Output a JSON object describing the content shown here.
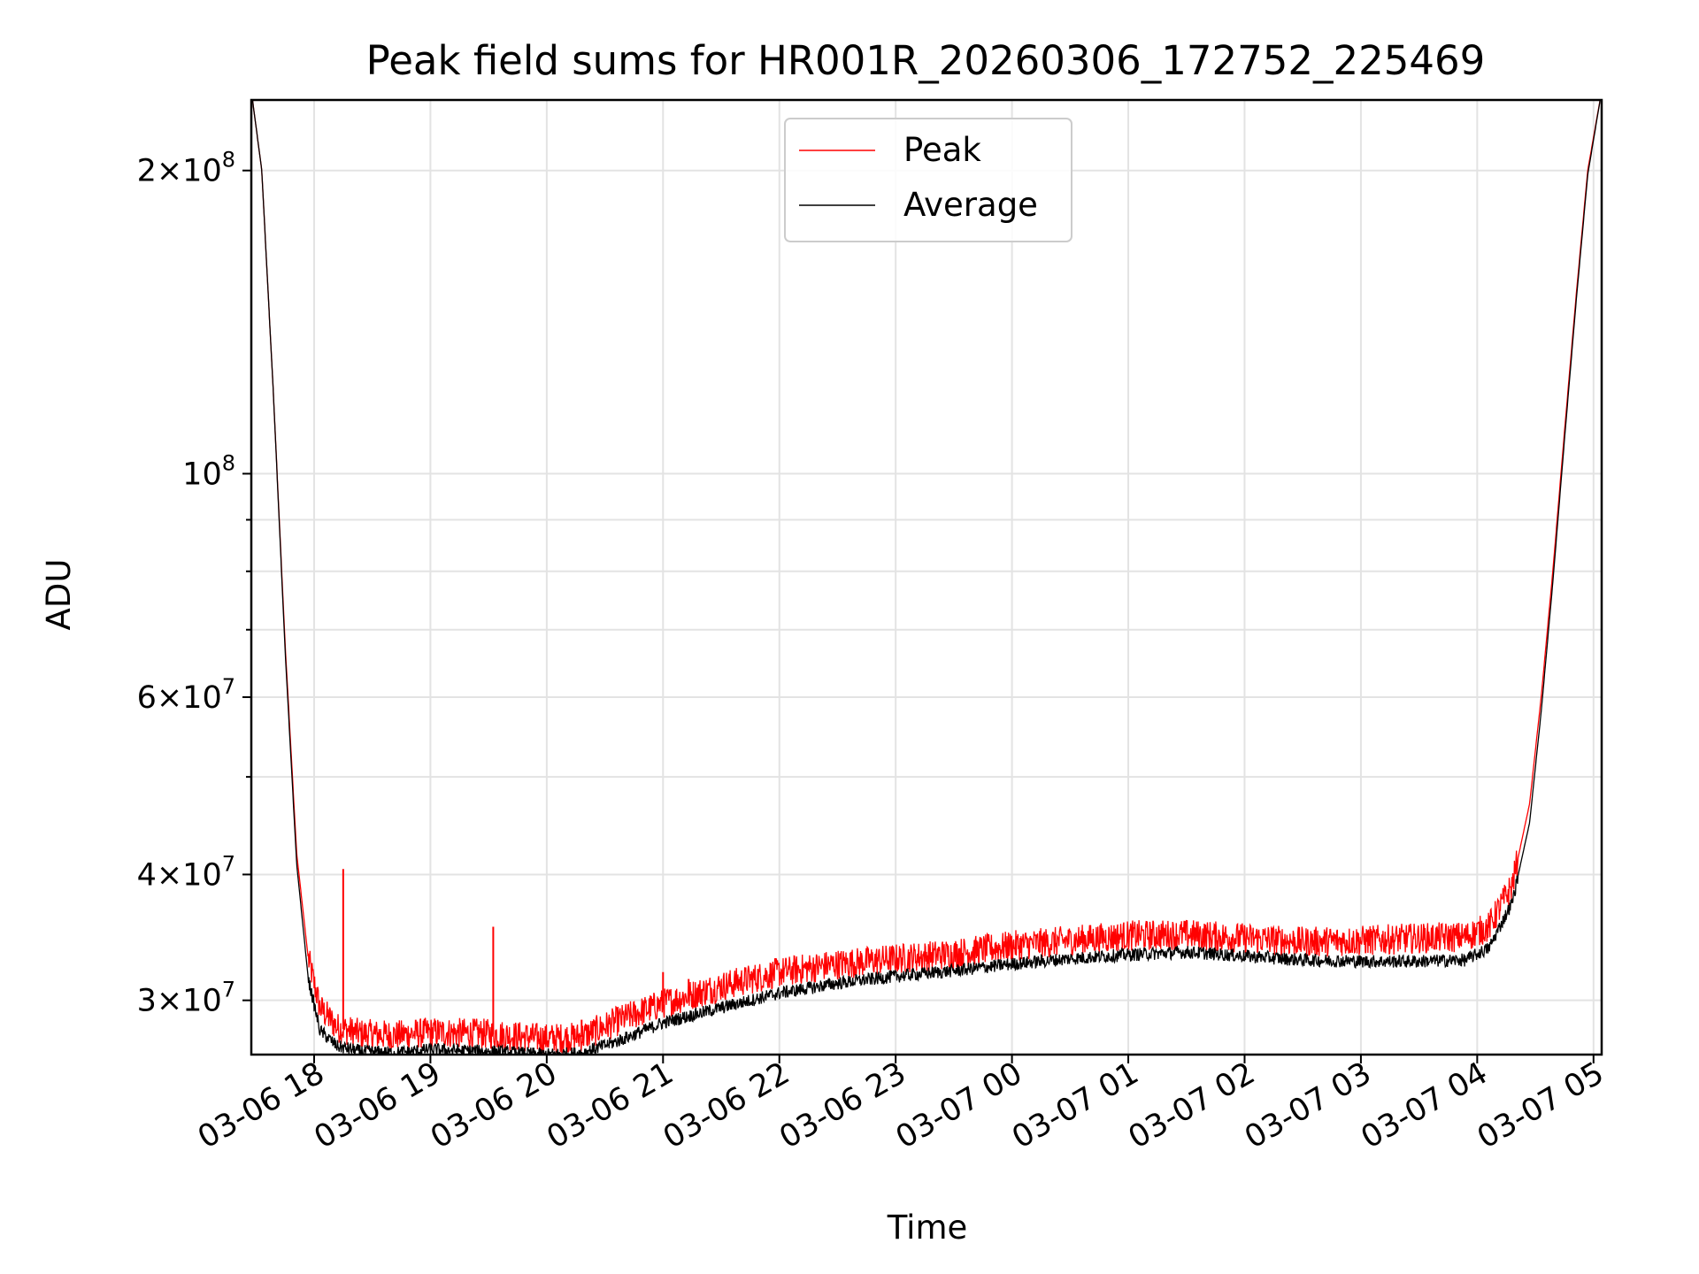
{
  "chart_data": {
    "type": "line",
    "title": "Peak field sums for HR001R_20260306_172752_225469",
    "xlabel": "Time",
    "ylabel": "ADU",
    "yscale": "log",
    "ylim": [
      26500000,
      235000000
    ],
    "xlim_hours_since_0306_1700": [
      0.46,
      12.07
    ],
    "grid": true,
    "legend_position": "top-center",
    "x_ticks": [
      {
        "label": "03-06 18",
        "hours": 1
      },
      {
        "label": "03-06 19",
        "hours": 2
      },
      {
        "label": "03-06 20",
        "hours": 3
      },
      {
        "label": "03-06 21",
        "hours": 4
      },
      {
        "label": "03-06 22",
        "hours": 5
      },
      {
        "label": "03-06 23",
        "hours": 6
      },
      {
        "label": "03-07 00",
        "hours": 7
      },
      {
        "label": "03-07 01",
        "hours": 8
      },
      {
        "label": "03-07 02",
        "hours": 9
      },
      {
        "label": "03-07 03",
        "hours": 10
      },
      {
        "label": "03-07 04",
        "hours": 11
      },
      {
        "label": "03-07 05",
        "hours": 12
      }
    ],
    "y_ticks": [
      {
        "mantissa": "3",
        "times": "×",
        "base": "10",
        "exp": "7",
        "value": 30000000
      },
      {
        "mantissa": "4",
        "times": "×",
        "base": "10",
        "exp": "7",
        "value": 40000000
      },
      {
        "mantissa": "6",
        "times": "×",
        "base": "10",
        "exp": "7",
        "value": 60000000
      },
      {
        "mantissa": "",
        "times": "",
        "base": "10",
        "exp": "8",
        "value": 100000000
      },
      {
        "mantissa": "2",
        "times": "×",
        "base": "10",
        "exp": "8",
        "value": 200000000
      }
    ],
    "y_minor_ticks": [
      50000000,
      70000000,
      80000000,
      90000000
    ],
    "series": [
      {
        "name": "Peak",
        "color": "#ff0000",
        "x_hours": [
          0.46,
          0.55,
          0.65,
          0.75,
          0.85,
          0.95,
          1.05,
          1.2,
          1.4,
          1.7,
          2.0,
          2.5,
          3.0,
          3.3,
          3.6,
          4.0,
          4.5,
          5.0,
          5.5,
          6.0,
          6.5,
          7.0,
          7.5,
          8.0,
          8.5,
          9.0,
          9.5,
          10.0,
          10.5,
          10.9,
          11.1,
          11.3,
          11.45,
          11.55,
          11.65,
          11.75,
          11.85,
          11.95,
          12.07
        ],
        "values": [
          240000000,
          200000000,
          120000000,
          68000000,
          42000000,
          33000000,
          29500000,
          28200000,
          27800000,
          27700000,
          27900000,
          27800000,
          27500000,
          27600000,
          28600000,
          29800000,
          31000000,
          32000000,
          32600000,
          33000000,
          33400000,
          34000000,
          34400000,
          34800000,
          34900000,
          34600000,
          34300000,
          34400000,
          34600000,
          34700000,
          35500000,
          39000000,
          47000000,
          60000000,
          80000000,
          110000000,
          150000000,
          200000000,
          240000000
        ]
      },
      {
        "name": "Average",
        "color": "#000000",
        "x_hours": [
          0.46,
          0.55,
          0.65,
          0.75,
          0.85,
          0.95,
          1.05,
          1.2,
          1.4,
          1.7,
          2.0,
          2.5,
          3.0,
          3.3,
          3.6,
          4.0,
          4.5,
          5.0,
          5.5,
          6.0,
          6.5,
          7.0,
          7.5,
          8.0,
          8.5,
          9.0,
          9.5,
          10.0,
          10.5,
          10.9,
          11.1,
          11.3,
          11.45,
          11.55,
          11.65,
          11.75,
          11.85,
          11.95,
          12.07
        ],
        "values": [
          240000000,
          200000000,
          120000000,
          67000000,
          41000000,
          31500000,
          28000000,
          27000000,
          26700000,
          26600000,
          26800000,
          26700000,
          26500000,
          26600000,
          27300000,
          28500000,
          29500000,
          30500000,
          31200000,
          31700000,
          32100000,
          32600000,
          33000000,
          33300000,
          33500000,
          33200000,
          32900000,
          32800000,
          32800000,
          32900000,
          33800000,
          37500000,
          45000000,
          58000000,
          78000000,
          108000000,
          148000000,
          198000000,
          240000000
        ]
      }
    ],
    "spikes": [
      {
        "series": "Peak",
        "hours": 1.25,
        "value": 40500000
      },
      {
        "series": "Peak",
        "hours": 1.52,
        "value": 28300000
      },
      {
        "series": "Peak",
        "hours": 2.54,
        "value": 35500000
      },
      {
        "series": "Peak",
        "hours": 3.3,
        "value": 28700000
      },
      {
        "series": "Peak",
        "hours": 4.0,
        "value": 32000000
      },
      {
        "series": "Peak",
        "hours": 4.22,
        "value": 31500000
      }
    ]
  }
}
